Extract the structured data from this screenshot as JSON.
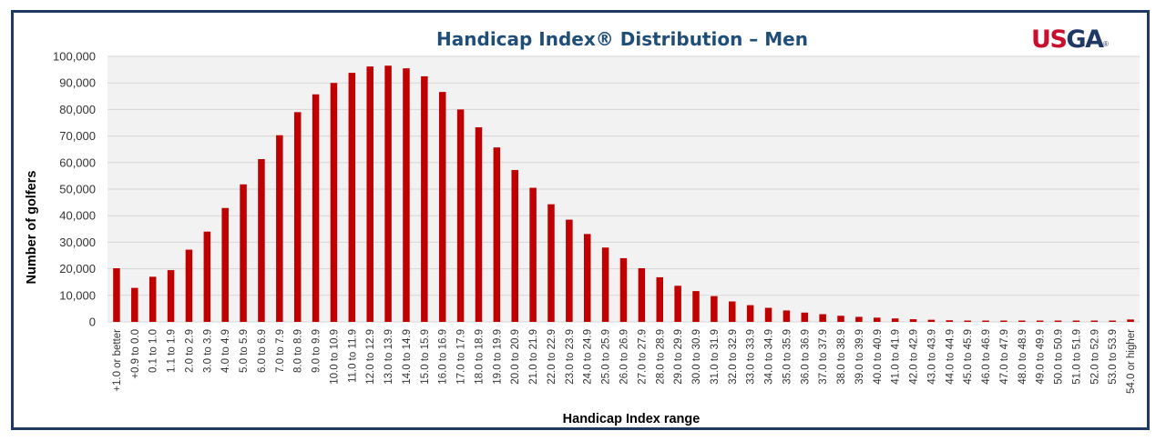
{
  "logo": {
    "text": "USGA",
    "letter_colors": [
      "#c8102e",
      "#c8102e",
      "#1f3864",
      "#1f3864"
    ],
    "mark": "®"
  },
  "chart_data": {
    "type": "bar",
    "title": "Handicap Index® Distribution – Men",
    "xlabel": "Handicap Index range",
    "ylabel": "Number of golfers",
    "ylim": [
      0,
      100000
    ],
    "yticks": [
      0,
      10000,
      20000,
      30000,
      40000,
      50000,
      60000,
      70000,
      80000,
      90000,
      100000
    ],
    "ytick_labels": [
      "0",
      "10,000",
      "20,000",
      "30,000",
      "40,000",
      "50,000",
      "60,000",
      "70,000",
      "80,000",
      "90,000",
      "100,000"
    ],
    "grid": true,
    "bar_color": "#c00000",
    "plot_background": "#f2f2f2",
    "categories": [
      "+1.0 or better",
      "+0.9 to 0.0",
      "0.1 to 1.0",
      "1.1 to 1.9",
      "2.0 to 2.9",
      "3.0 to 3.9",
      "4.0 to 4.9",
      "5.0 to 5.9",
      "6.0 to 6.9",
      "7.0 to 7.9",
      "8.0 to 8.9",
      "9.0 to 9.9",
      "10.0 to 10.9",
      "11.0 to 11.9",
      "12.0 to 12.9",
      "13.0 to 13.9",
      "14.0 to 14.9",
      "15.0 to 15.9",
      "16.0 to 16.9",
      "17.0 to 17.9",
      "18.0 to 18.9",
      "19.0 to 19.9",
      "20.0 to 20.9",
      "21.0 to 21.9",
      "22.0 to 22.9",
      "23.0 to 23.9",
      "24.0 to 24.9",
      "25.0 to 25.9",
      "26.0 to 26.9",
      "27.0 to 27.9",
      "28.0 to 28.9",
      "29.0 to 29.9",
      "30.0 to 30.9",
      "31.0 to 31.9",
      "32.0 to 32.9",
      "33.0 to 33.9",
      "34.0 to 34.9",
      "35.0 to 35.9",
      "36.0 to 36.9",
      "37.0 to 37.9",
      "38.0 to 38.9",
      "39.0 to 39.9",
      "40.0 to 40.9",
      "41.0 to 41.9",
      "42.0 to 42.9",
      "43.0 to 43.9",
      "44.0 to 44.9",
      "45.0 to 45.9",
      "46.0 to 46.9",
      "47.0 to 47.9",
      "48.0 to 48.9",
      "49.0 to 49.9",
      "50.0 to 50.9",
      "51.0 to 51.9",
      "52.0 to 52.9",
      "53.0 to 53.9",
      "54.0 or higher"
    ],
    "values": [
      20200,
      12800,
      17000,
      19500,
      27200,
      34000,
      42900,
      51800,
      61300,
      70300,
      79000,
      85700,
      90000,
      93800,
      96200,
      96500,
      95500,
      92500,
      86600,
      80000,
      73300,
      65700,
      57200,
      50500,
      44300,
      38500,
      33100,
      28000,
      24000,
      20200,
      16800,
      13600,
      11600,
      9700,
      7700,
      6300,
      5300,
      4300,
      3500,
      2900,
      2300,
      1900,
      1600,
      1300,
      1000,
      800,
      600,
      500,
      500,
      500,
      500,
      500,
      500,
      500,
      500,
      500,
      900
    ]
  }
}
